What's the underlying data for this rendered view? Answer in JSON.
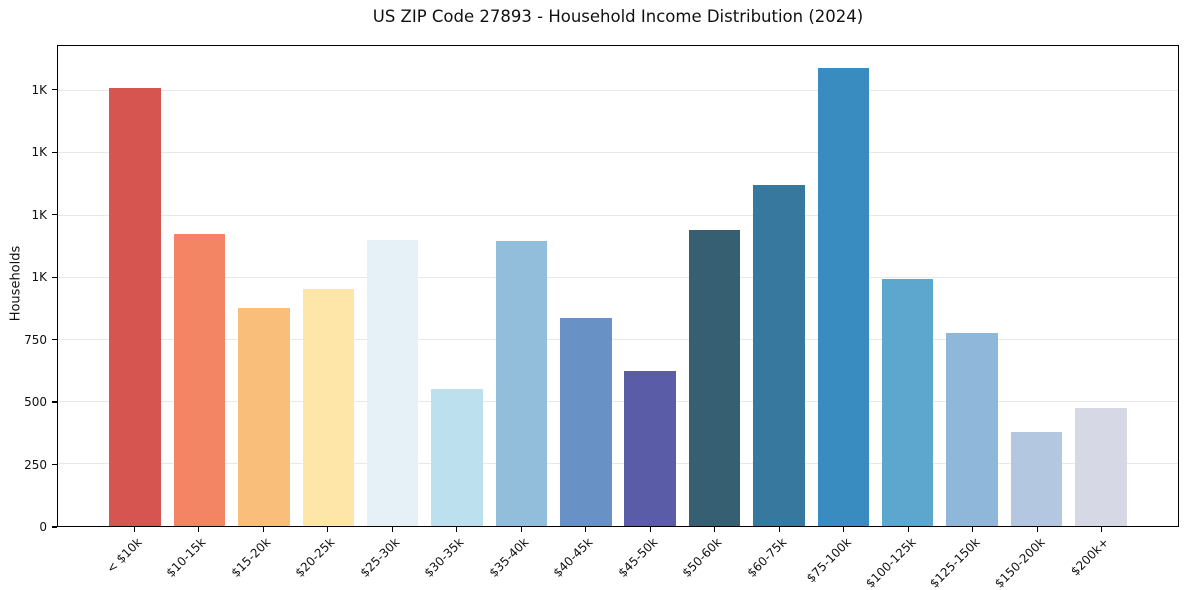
{
  "chart_data": {
    "type": "bar",
    "title": "US ZIP Code 27893 - Household Income Distribution (2024)",
    "xlabel": "",
    "ylabel": "Households",
    "categories": [
      "< $10k",
      "$10-15k",
      "$15-20k",
      "$20-25k",
      "$25-30k",
      "$30-35k",
      "$35-40k",
      "$40-45k",
      "$45-50k",
      "$50-60k",
      "$60-75k",
      "$75-100k",
      "$100-125k",
      "$125-150k",
      "$150-200k",
      "$200k+"
    ],
    "values": [
      1760,
      1175,
      875,
      955,
      1150,
      550,
      1145,
      835,
      625,
      1190,
      1370,
      1840,
      995,
      775,
      380,
      475
    ],
    "bar_colors": [
      "#d65551",
      "#f38565",
      "#fabe7b",
      "#fde6a7",
      "#e5f1f6",
      "#bce0ee",
      "#92bedb",
      "#6891c5",
      "#5b5ca8",
      "#366072",
      "#37789f",
      "#398cbf",
      "#5da6cd",
      "#8fb7da",
      "#b4c7e0",
      "#d6d8e6"
    ],
    "ylim": [
      0,
      1930
    ],
    "yticks": [
      {
        "value": 0,
        "label": "0"
      },
      {
        "value": 250,
        "label": "250"
      },
      {
        "value": 500,
        "label": "500"
      },
      {
        "value": 750,
        "label": "750"
      },
      {
        "value": 1000,
        "label": "1K"
      },
      {
        "value": 1250,
        "label": "1K"
      },
      {
        "value": 1500,
        "label": "1K"
      },
      {
        "value": 1750,
        "label": "1K"
      }
    ],
    "grid": "horizontal",
    "legend": "none",
    "bar_width_fraction": 0.8
  }
}
